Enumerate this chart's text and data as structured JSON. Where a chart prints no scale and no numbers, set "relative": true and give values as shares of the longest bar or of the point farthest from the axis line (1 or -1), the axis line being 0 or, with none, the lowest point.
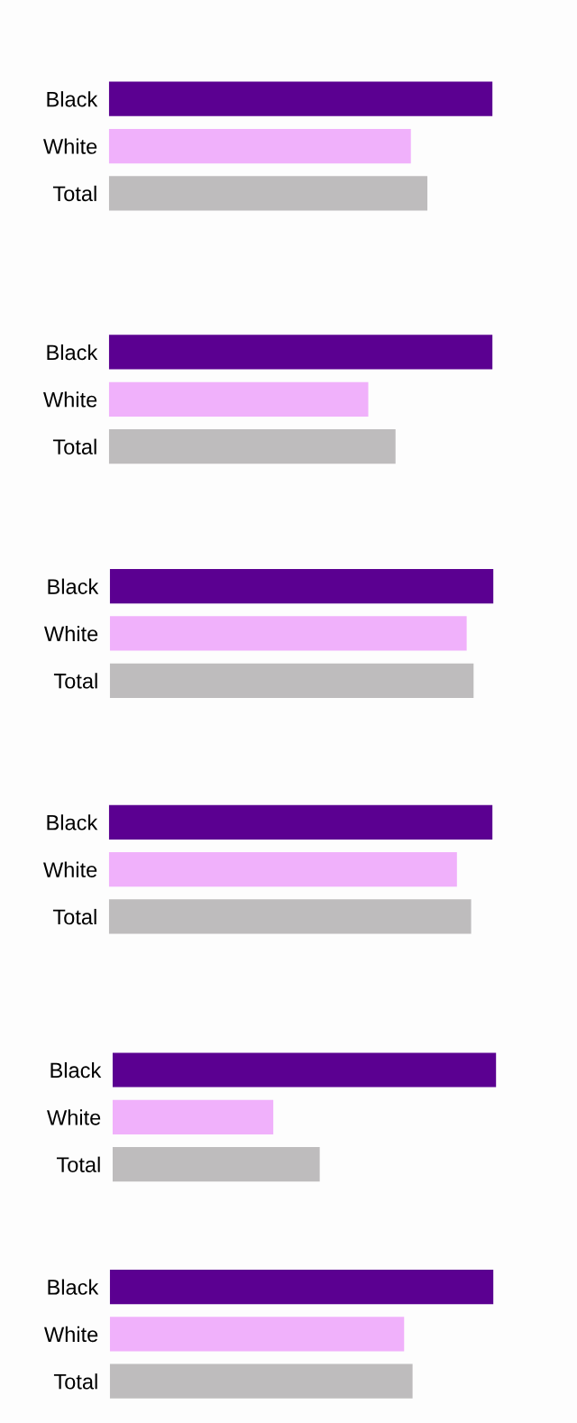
{
  "chart_data": [
    {
      "type": "bar",
      "orientation": "horizontal",
      "relative": true,
      "categories": [
        "Black",
        "White",
        "Total"
      ],
      "values": [
        1,
        0.787,
        0.83
      ],
      "colors": [
        "#5b0091",
        "#f0b1fb",
        "#bebcbd"
      ]
    },
    {
      "type": "bar",
      "orientation": "horizontal",
      "relative": true,
      "categories": [
        "Black",
        "White",
        "Total"
      ],
      "values": [
        1,
        0.676,
        0.747
      ],
      "colors": [
        "#5b0091",
        "#f0b1fb",
        "#bebcbd"
      ]
    },
    {
      "type": "bar",
      "orientation": "horizontal",
      "relative": true,
      "categories": [
        "Black",
        "White",
        "Total"
      ],
      "values": [
        1,
        0.93,
        0.948
      ],
      "colors": [
        "#5b0091",
        "#f0b1fb",
        "#bebcbd"
      ]
    },
    {
      "type": "bar",
      "orientation": "horizontal",
      "relative": true,
      "categories": [
        "Black",
        "White",
        "Total"
      ],
      "values": [
        1,
        0.907,
        0.944
      ],
      "colors": [
        "#5b0091",
        "#f0b1fb",
        "#bebcbd"
      ]
    },
    {
      "type": "bar",
      "orientation": "horizontal",
      "relative": true,
      "categories": [
        "Black",
        "White",
        "Total"
      ],
      "values": [
        1,
        0.419,
        0.54
      ],
      "colors": [
        "#5b0091",
        "#f0b1fb",
        "#bebcbd"
      ]
    },
    {
      "type": "bar",
      "orientation": "horizontal",
      "relative": true,
      "categories": [
        "Black",
        "White",
        "Total"
      ],
      "values": [
        1,
        0.767,
        0.789
      ],
      "colors": [
        "#5b0091",
        "#f0b1fb",
        "#bebcbd"
      ]
    }
  ]
}
